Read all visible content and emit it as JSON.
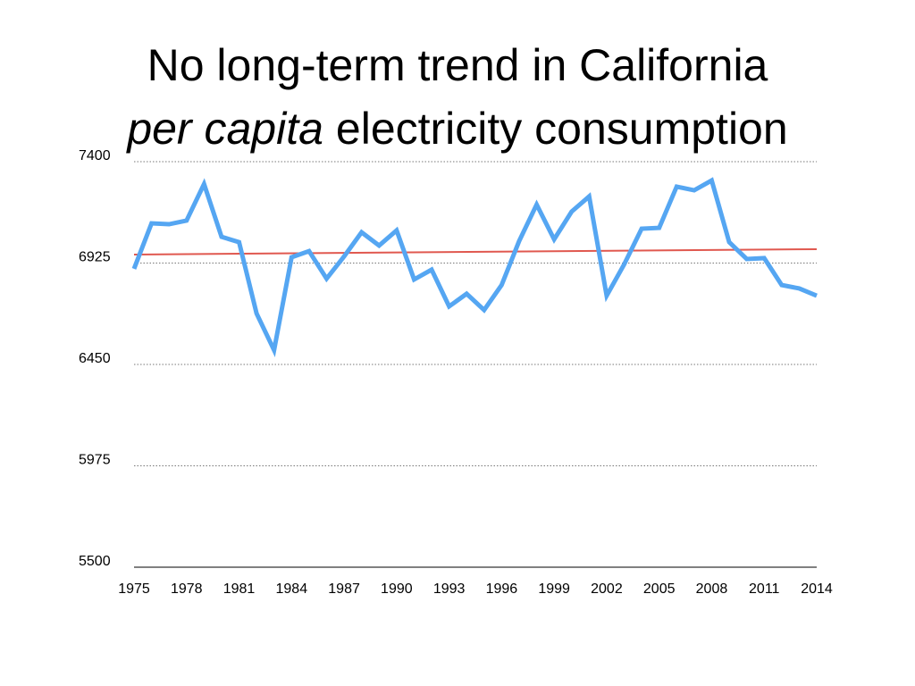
{
  "chart_data": {
    "type": "line",
    "title": {
      "line1": "No long-term trend in California",
      "line2_italic": "per capita",
      "line2": "electricity consumption"
    },
    "x": [
      1975,
      1976,
      1977,
      1978,
      1979,
      1980,
      1981,
      1982,
      1983,
      1984,
      1985,
      1986,
      1987,
      1988,
      1989,
      1990,
      1991,
      1992,
      1993,
      1994,
      1995,
      1996,
      1997,
      1998,
      1999,
      2000,
      2001,
      2002,
      2003,
      2004,
      2005,
      2006,
      2007,
      2008,
      2009,
      2010,
      2011,
      2012,
      2013,
      2014
    ],
    "series": [
      {
        "color": "#55a6f2",
        "values": [
          6898,
          7111,
          7107,
          7124,
          7295,
          7048,
          7023,
          6689,
          6517,
          6952,
          6981,
          6852,
          6956,
          7069,
          7007,
          7078,
          6848,
          6894,
          6722,
          6781,
          6705,
          6822,
          7028,
          7199,
          7036,
          7166,
          7237,
          6772,
          6919,
          7086,
          7090,
          7283,
          7266,
          7312,
          7023,
          6944,
          6948,
          6822,
          6806,
          6772
        ]
      }
    ],
    "trend": {
      "color": "#e0584f",
      "x": [
        1975,
        2014
      ],
      "values": [
        6965,
        6990
      ]
    },
    "xlim": [
      1975,
      2014
    ],
    "xticks": [
      1975,
      1978,
      1981,
      1984,
      1987,
      1990,
      1993,
      1996,
      1999,
      2002,
      2005,
      2008,
      2011,
      2014
    ],
    "ylim": [
      5500,
      7400
    ],
    "yticks": [
      5500,
      5975,
      6450,
      6925,
      7400
    ],
    "grid": true
  }
}
